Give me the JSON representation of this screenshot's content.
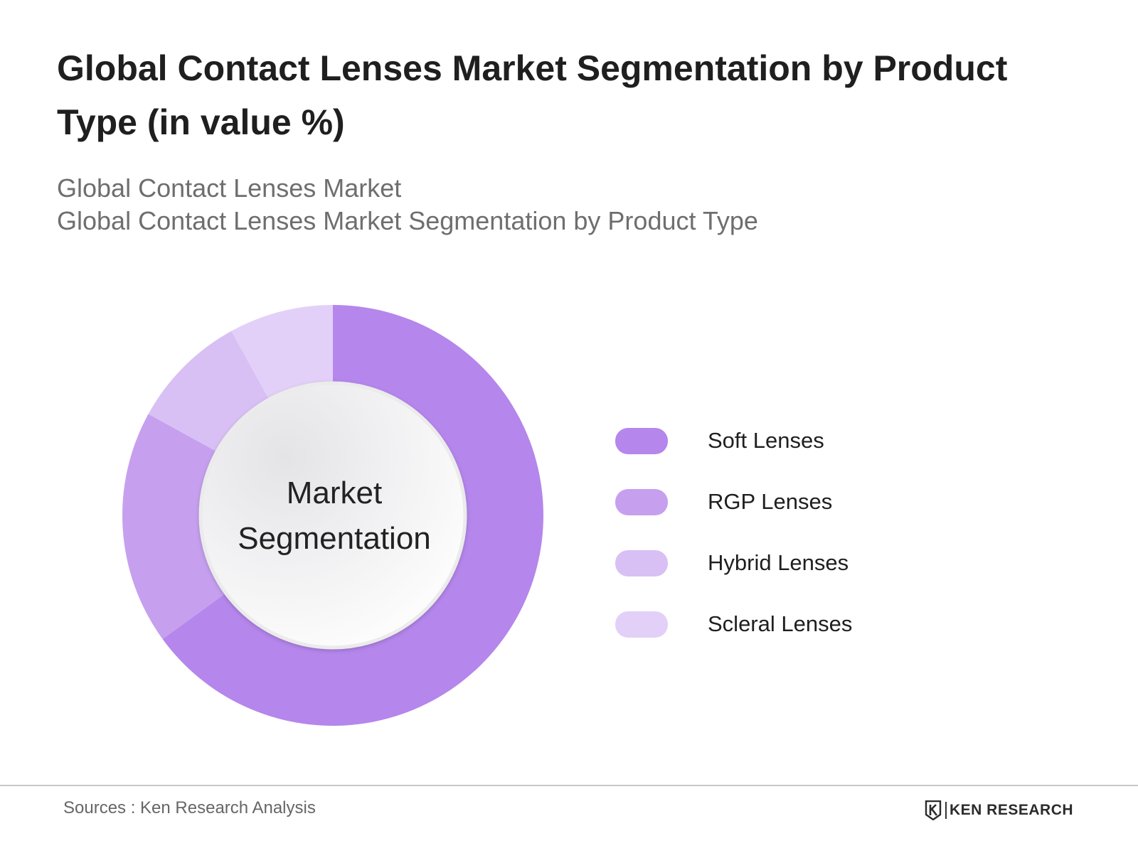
{
  "title": "Global Contact Lenses Market Segmentation by Product Type (in value %)",
  "subtitle_line1": "Global Contact Lenses Market",
  "subtitle_line2": "Global Contact Lenses Market Segmentation by Product Type",
  "source": "Sources : Ken Research Analysis",
  "brand": "KEN RESEARCH",
  "icons": {
    "brand_logo": "ken-research-logo-icon"
  },
  "chart_data": {
    "type": "pie",
    "center_label_line1": "Market",
    "center_label_line2": "Segmentation",
    "legend_placement": "right",
    "series": [
      {
        "name": "Soft Lenses",
        "value": 65,
        "color": "#b586ec"
      },
      {
        "name": "RGP Lenses",
        "value": 18,
        "color": "#c6a0ef"
      },
      {
        "name": "Hybrid Lenses",
        "value": 9,
        "color": "#d8c0f5"
      },
      {
        "name": "Scleral Lenses",
        "value": 8,
        "color": "#e3d0f8"
      }
    ]
  }
}
